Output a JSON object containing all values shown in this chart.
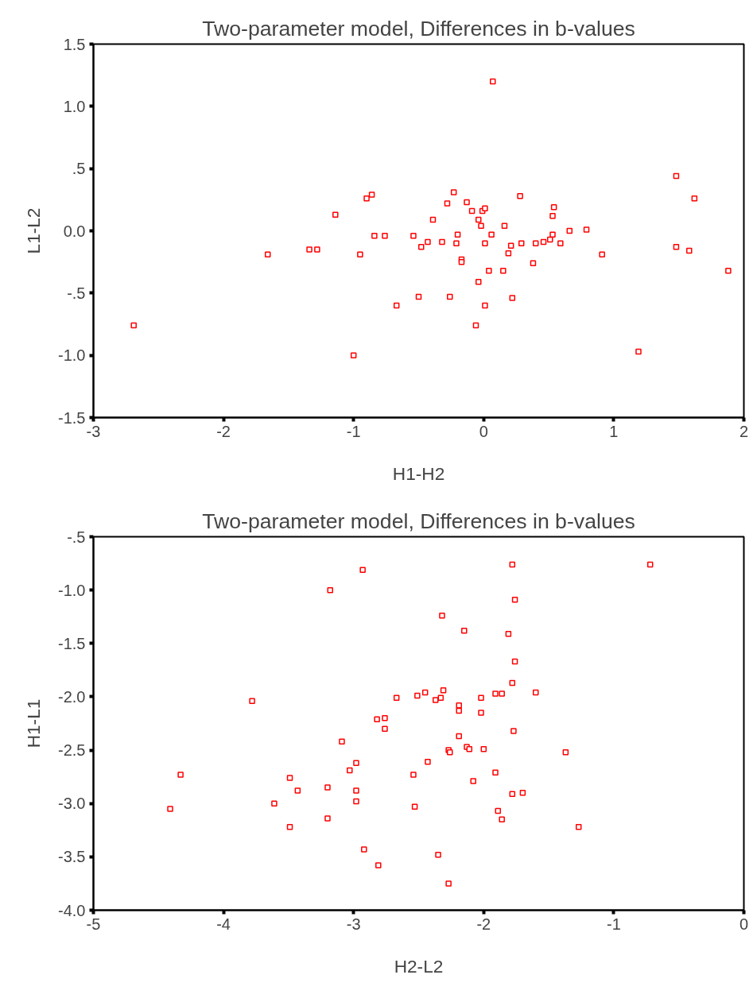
{
  "chart_data": [
    {
      "type": "scatter",
      "title": "Two-parameter model, Differences in b-values",
      "xlabel": "H1-H2",
      "ylabel": "L1-L2",
      "xlim": [
        -3,
        2
      ],
      "xticks": [
        -3,
        -2,
        -1,
        0,
        1,
        2
      ],
      "ylim": [
        -1.5,
        1.5
      ],
      "yticks": [
        {
          "value": -1.5,
          "label": "-1.5"
        },
        {
          "value": -1.0,
          "label": "-1.0"
        },
        {
          "value": -0.5,
          "label": "-.5"
        },
        {
          "value": 0,
          "label": "0.0"
        },
        {
          "value": 0.5,
          "label": ".5"
        },
        {
          "value": 1.0,
          "label": "1.0"
        },
        {
          "value": 1.5,
          "label": "1.5"
        }
      ],
      "grid": false,
      "marker": "square",
      "series": [
        {
          "color": "#ff0000",
          "x": [
            -2.69,
            -1.66,
            -1.34,
            -1.28,
            -1.14,
            -1.0,
            -0.95,
            -0.9,
            -0.86,
            -0.84,
            -0.76,
            -0.67,
            -0.54,
            -0.5,
            -0.48,
            -0.43,
            -0.39,
            -0.32,
            -0.28,
            -0.26,
            -0.23,
            -0.21,
            -0.2,
            -0.17,
            -0.17,
            -0.13,
            -0.09,
            -0.06,
            -0.04,
            -0.04,
            -0.02,
            -0.01,
            0.01,
            0.01,
            0.01,
            0.04,
            0.06,
            0.07,
            0.16,
            0.15,
            0.19,
            0.21,
            0.22,
            0.28,
            0.29,
            0.38,
            0.4,
            0.46,
            0.51,
            0.53,
            0.53,
            0.54,
            0.59,
            0.66,
            0.79,
            0.91,
            1.19,
            1.48,
            1.48,
            1.58,
            1.62,
            1.88
          ],
          "values": [
            -0.76,
            -0.19,
            -0.15,
            -0.15,
            0.13,
            -1.0,
            -0.19,
            0.26,
            0.29,
            -0.04,
            -0.04,
            -0.6,
            -0.04,
            -0.53,
            -0.13,
            -0.09,
            0.09,
            -0.09,
            0.22,
            -0.53,
            0.31,
            -0.1,
            -0.03,
            -0.23,
            -0.25,
            0.23,
            0.16,
            -0.76,
            0.09,
            -0.41,
            0.04,
            0.16,
            0.18,
            -0.1,
            -0.6,
            -0.32,
            -0.03,
            1.2,
            0.04,
            -0.32,
            -0.18,
            -0.12,
            -0.54,
            0.28,
            -0.1,
            -0.26,
            -0.1,
            -0.09,
            -0.07,
            -0.03,
            0.12,
            0.19,
            -0.1,
            0.0,
            0.01,
            -0.19,
            -0.97,
            0.44,
            -0.13,
            -0.16,
            0.26,
            -0.32
          ]
        }
      ]
    },
    {
      "type": "scatter",
      "title": "Two-parameter model, Differences in b-values",
      "xlabel": "H2-L2",
      "ylabel": "H1-L1",
      "xlim": [
        -5,
        0
      ],
      "xticks": [
        -5,
        -4,
        -3,
        -2,
        -1,
        0
      ],
      "ylim": [
        -4.0,
        -0.5
      ],
      "yticks": [
        {
          "value": -4.0,
          "label": "-4.0"
        },
        {
          "value": -3.5,
          "label": "-3.5"
        },
        {
          "value": -3.0,
          "label": "-3.0"
        },
        {
          "value": -2.5,
          "label": "-2.5"
        },
        {
          "value": -2.0,
          "label": "-2.0"
        },
        {
          "value": -1.5,
          "label": "-1.5"
        },
        {
          "value": -1.0,
          "label": "-1.0"
        },
        {
          "value": -0.5,
          "label": "-.5"
        }
      ],
      "grid": false,
      "marker": "square",
      "series": [
        {
          "color": "#ff0000",
          "x": [
            -4.41,
            -4.33,
            -3.78,
            -3.61,
            -3.49,
            -3.49,
            -3.43,
            -3.2,
            -3.2,
            -3.18,
            -3.09,
            -3.03,
            -2.98,
            -2.98,
            -2.98,
            -2.93,
            -2.92,
            -2.82,
            -2.81,
            -2.76,
            -2.76,
            -2.67,
            -2.54,
            -2.53,
            -2.51,
            -2.45,
            -2.43,
            -2.37,
            -2.33,
            -2.31,
            -2.32,
            -2.35,
            -2.27,
            -2.26,
            -2.27,
            -2.19,
            -2.19,
            -2.19,
            -2.15,
            -2.13,
            -2.11,
            -2.08,
            -2.02,
            -2.02,
            -2.0,
            -1.91,
            -1.86,
            -1.91,
            -1.89,
            -1.86,
            -1.81,
            -1.78,
            -1.76,
            -1.76,
            -1.78,
            -1.77,
            -1.78,
            -1.7,
            -1.6,
            -1.37,
            -1.27,
            -0.72
          ],
          "values": [
            -3.05,
            -2.73,
            -2.04,
            -3.0,
            -2.76,
            -3.22,
            -2.88,
            -2.85,
            -3.14,
            -1.0,
            -2.42,
            -2.69,
            -2.62,
            -2.88,
            -2.98,
            -0.81,
            -3.43,
            -2.21,
            -3.58,
            -2.2,
            -2.3,
            -2.01,
            -2.73,
            -3.03,
            -1.99,
            -1.96,
            -2.61,
            -2.03,
            -2.01,
            -1.94,
            -1.24,
            -3.48,
            -2.5,
            -2.52,
            -3.75,
            -2.08,
            -2.13,
            -2.37,
            -1.38,
            -2.47,
            -2.49,
            -2.79,
            -2.01,
            -2.15,
            -2.49,
            -1.97,
            -1.97,
            -2.71,
            -3.07,
            -3.15,
            -1.41,
            -0.76,
            -1.09,
            -1.67,
            -1.87,
            -2.32,
            -2.91,
            -2.9,
            -1.96,
            -2.52,
            -3.22,
            -0.76
          ]
        }
      ]
    }
  ]
}
